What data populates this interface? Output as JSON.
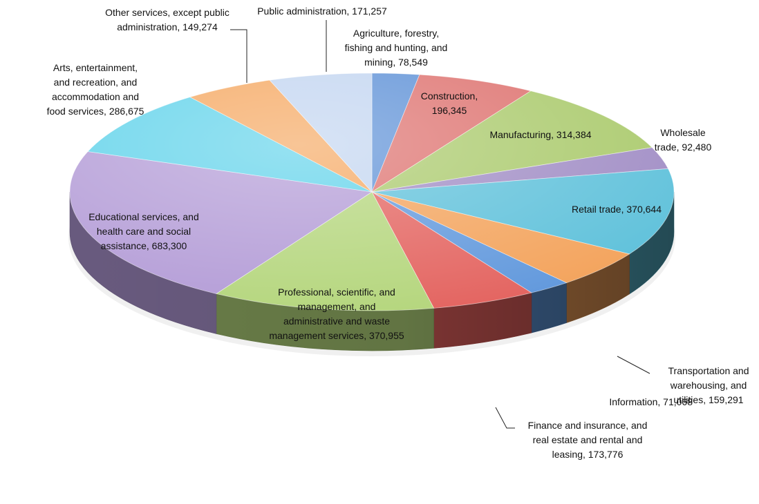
{
  "chart_data": {
    "type": "pie",
    "title": "",
    "slices": [
      {
        "label_lines": [
          "Agriculture, forestry,",
          "fishing and hunting, and",
          "mining, 78,549"
        ],
        "value": 78549,
        "color": "#5b8fd6"
      },
      {
        "label_lines": [
          "Construction,",
          "196,345"
        ],
        "value": 196345,
        "color": "#dd6f6c"
      },
      {
        "label_lines": [
          "Manufacturing, 314,384"
        ],
        "value": 314384,
        "color": "#a9c96a"
      },
      {
        "label_lines": [
          "Wholesale",
          "trade, 92,480"
        ],
        "value": 92480,
        "color": "#9f8bc4"
      },
      {
        "label_lines": [
          "Retail trade, 370,644"
        ],
        "value": 370644,
        "color": "#5cc0da"
      },
      {
        "label_lines": [
          "Transportation and",
          "warehousing, and",
          "utilities, 159,291"
        ],
        "value": 159291,
        "color": "#f3a25a"
      },
      {
        "label_lines": [
          "Information, 71,068"
        ],
        "value": 71068,
        "color": "#5f97dc"
      },
      {
        "label_lines": [
          "Finance and insurance, and",
          "real estate and rental and",
          "leasing, 173,776"
        ],
        "value": 173776,
        "color": "#e3615d"
      },
      {
        "label_lines": [
          "Professional, scientific, and",
          "management, and",
          "administrative and waste",
          "management services, 370,955"
        ],
        "value": 370955,
        "color": "#b3d57a"
      },
      {
        "label_lines": [
          "Educational services, and",
          "health care and social",
          "assistance, 683,300"
        ],
        "value": 683300,
        "color": "#b29ad6"
      },
      {
        "label_lines": [
          "Arts, entertainment,",
          "and recreation, and",
          "accommodation and",
          "food services, 286,675"
        ],
        "value": 286675,
        "color": "#5ed2ea"
      },
      {
        "label_lines": [
          "Other services, except public",
          "administration, 149,274"
        ],
        "value": 149274,
        "color": "#f5a65e"
      },
      {
        "label_lines": [
          "Public administration, 171,257"
        ],
        "value": 171257,
        "color": "#c1d4f0"
      }
    ]
  }
}
